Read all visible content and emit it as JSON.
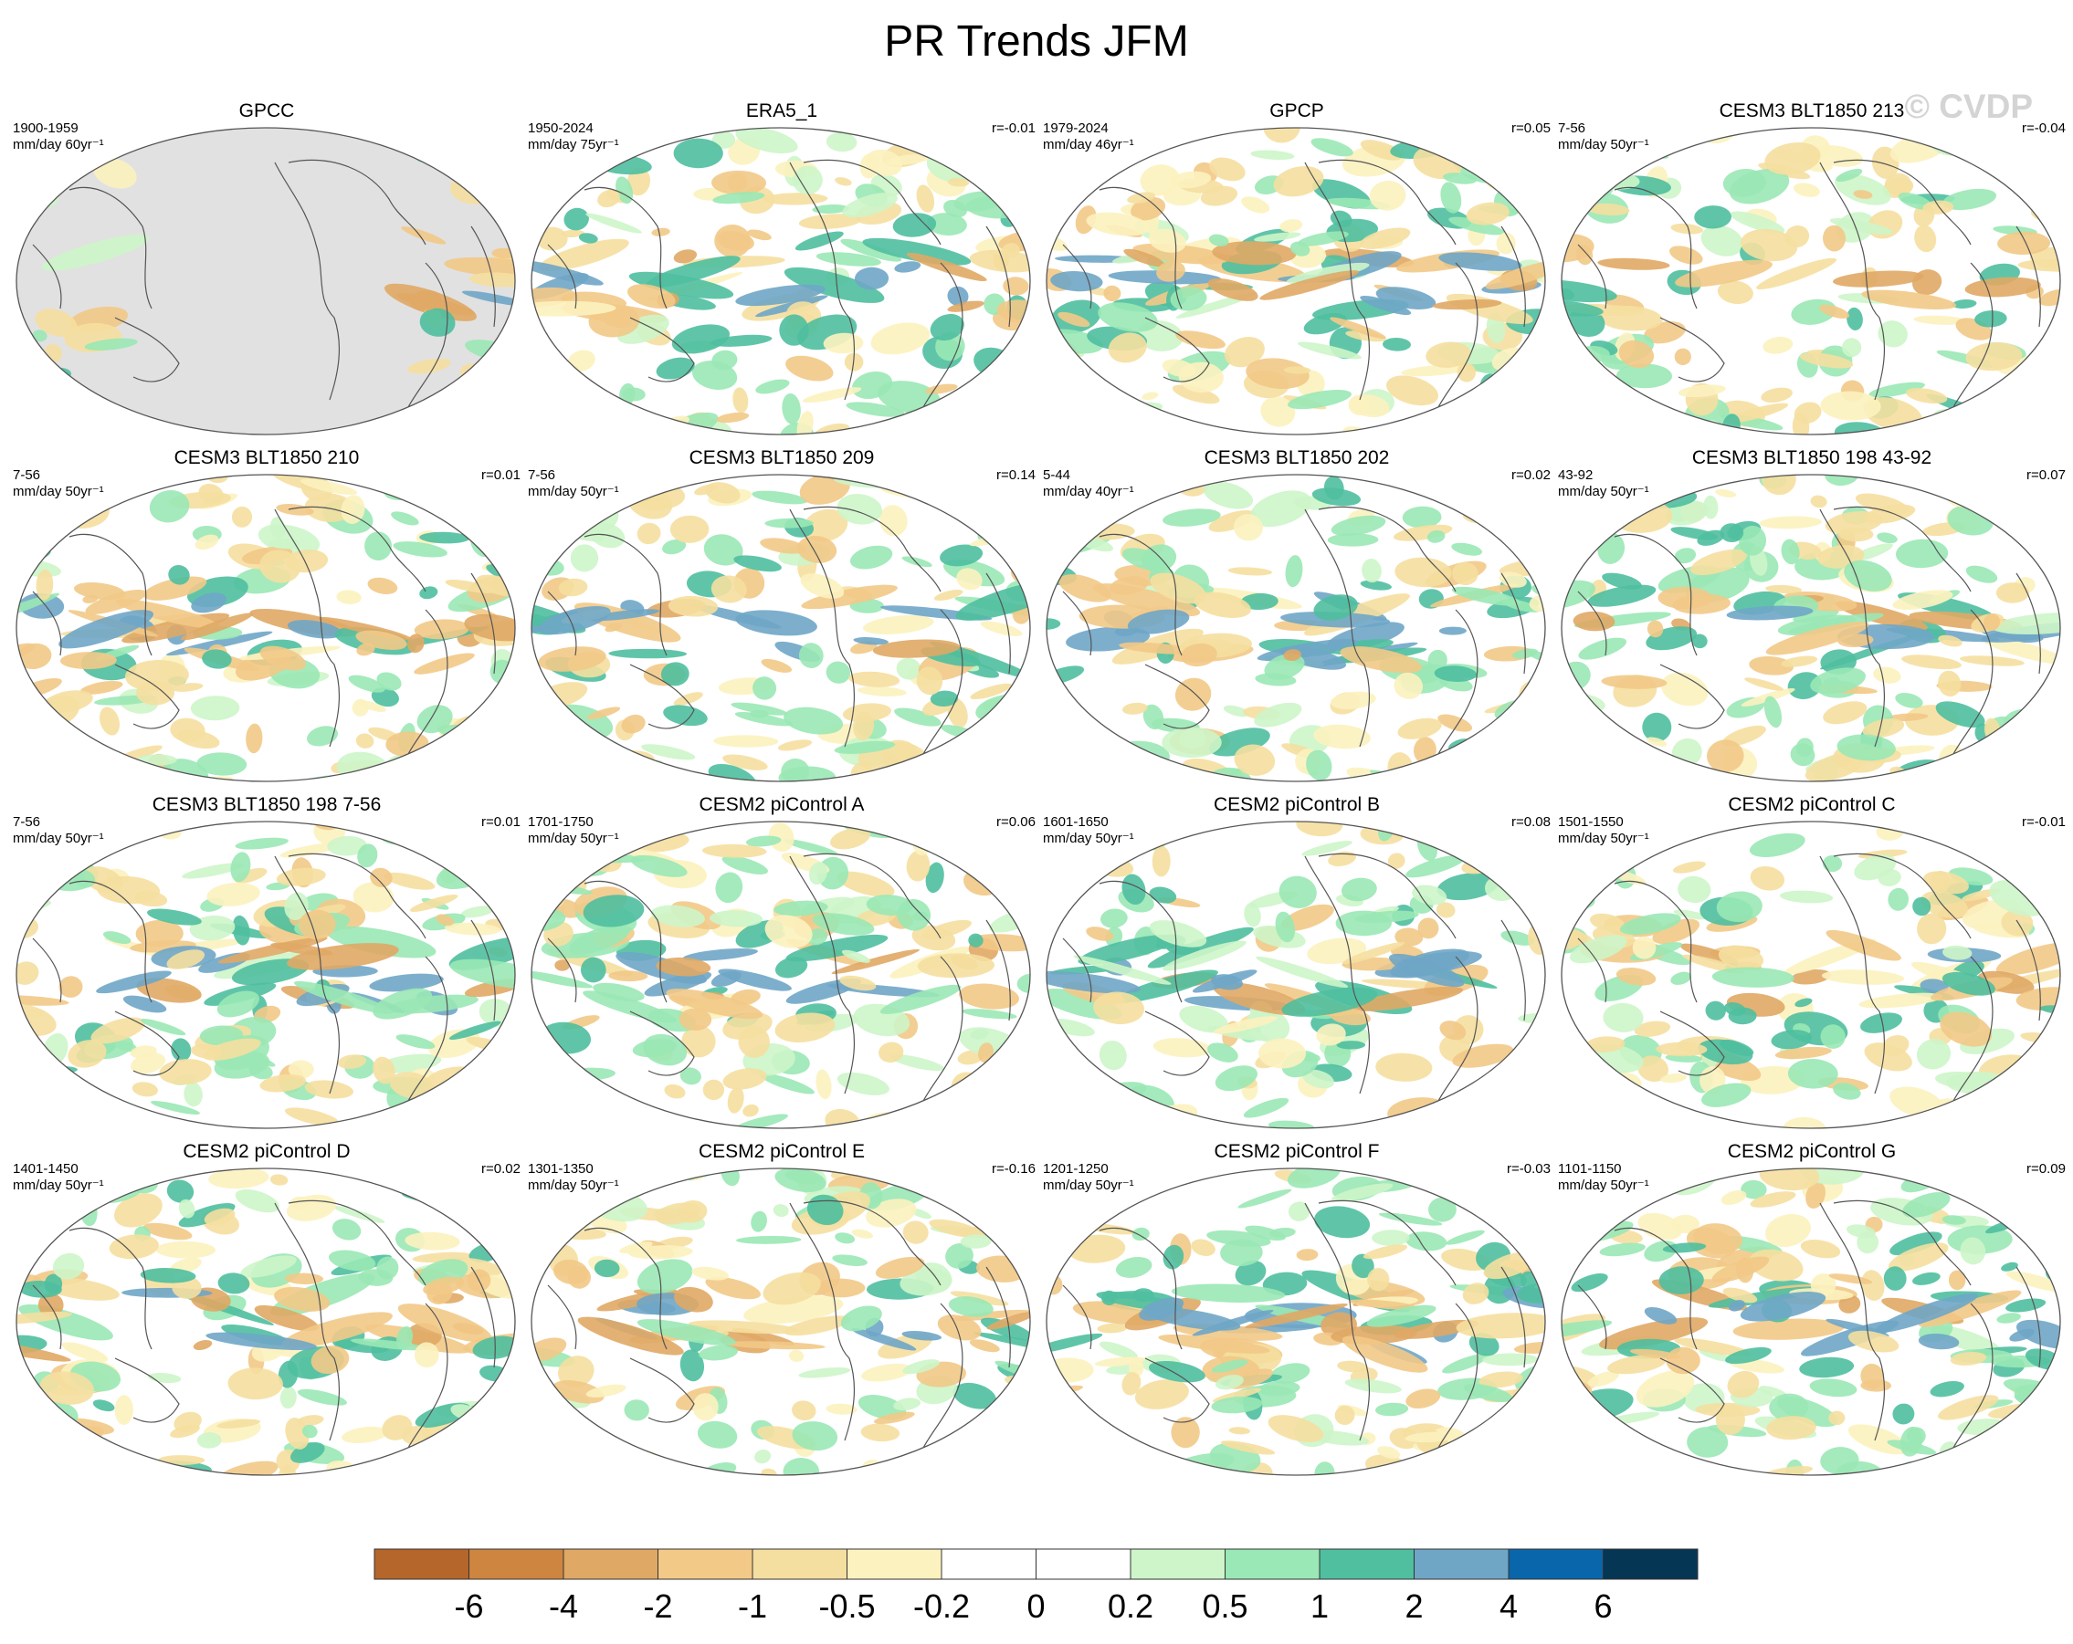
{
  "title": "PR Trends JFM",
  "watermark": "© CVDP",
  "panels": [
    {
      "title": "GPCC",
      "period": "1900-1959",
      "units": "mm/day 60yr⁻¹",
      "corr": "",
      "masked": true,
      "seed": 3
    },
    {
      "title": "ERA5_1",
      "period": "1950-2024",
      "units": "mm/day 75yr⁻¹",
      "corr": "r=-0.01",
      "masked": false,
      "seed": 11
    },
    {
      "title": "GPCP",
      "period": "1979-2024",
      "units": "mm/day 46yr⁻¹",
      "corr": "r=0.05",
      "masked": false,
      "seed": 19
    },
    {
      "title": "CESM3 BLT1850 213",
      "period": "7-56",
      "units": "mm/day 50yr⁻¹",
      "corr": "r=-0.04",
      "masked": false,
      "seed": 27
    },
    {
      "title": "CESM3 BLT1850 210",
      "period": "7-56",
      "units": "mm/day 50yr⁻¹",
      "corr": "r=0.01",
      "masked": false,
      "seed": 35
    },
    {
      "title": "CESM3 BLT1850 209",
      "period": "7-56",
      "units": "mm/day 50yr⁻¹",
      "corr": "r=0.14",
      "masked": false,
      "seed": 43
    },
    {
      "title": "CESM3 BLT1850 202",
      "period": "5-44",
      "units": "mm/day 40yr⁻¹",
      "corr": "r=0.02",
      "masked": false,
      "seed": 51
    },
    {
      "title": "CESM3 BLT1850 198 43-92",
      "period": "43-92",
      "units": "mm/day 50yr⁻¹",
      "corr": "r=0.07",
      "masked": false,
      "seed": 59
    },
    {
      "title": "CESM3 BLT1850 198 7-56",
      "period": "7-56",
      "units": "mm/day 50yr⁻¹",
      "corr": "r=0.01",
      "masked": false,
      "seed": 67
    },
    {
      "title": "CESM2 piControl A",
      "period": "1701-1750",
      "units": "mm/day 50yr⁻¹",
      "corr": "r=0.06",
      "masked": false,
      "seed": 75
    },
    {
      "title": "CESM2 piControl B",
      "period": "1601-1650",
      "units": "mm/day 50yr⁻¹",
      "corr": "r=0.08",
      "masked": false,
      "seed": 83
    },
    {
      "title": "CESM2 piControl C",
      "period": "1501-1550",
      "units": "mm/day 50yr⁻¹",
      "corr": "r=-0.01",
      "masked": false,
      "seed": 91
    },
    {
      "title": "CESM2 piControl D",
      "period": "1401-1450",
      "units": "mm/day 50yr⁻¹",
      "corr": "r=0.02",
      "masked": false,
      "seed": 99
    },
    {
      "title": "CESM2 piControl E",
      "period": "1301-1350",
      "units": "mm/day 50yr⁻¹",
      "corr": "r=-0.16",
      "masked": false,
      "seed": 107
    },
    {
      "title": "CESM2 piControl F",
      "period": "1201-1250",
      "units": "mm/day 50yr⁻¹",
      "corr": "r=-0.03",
      "masked": false,
      "seed": 115
    },
    {
      "title": "CESM2 piControl G",
      "period": "1101-1150",
      "units": "mm/day 50yr⁻¹",
      "corr": "r=0.09",
      "masked": false,
      "seed": 123
    }
  ],
  "colorbar": {
    "levels": [
      "-6",
      "-4",
      "-2",
      "-1",
      "-0.5",
      "-0.2",
      "0",
      "0.2",
      "0.5",
      "1",
      "2",
      "4",
      "6"
    ],
    "colors": [
      "#b5662a",
      "#cd8540",
      "#e0a865",
      "#f2c987",
      "#f5dfa0",
      "#fcf2bf",
      "#ffffff",
      "#ffffff",
      "#cdf5c9",
      "#9ae8b5",
      "#4fbf9f",
      "#6fa6c6",
      "#0a66aa",
      "#053654"
    ]
  },
  "map_style": {
    "land_mask_color": "#e1e1e1",
    "coast_color": "#555555",
    "ellipse_stroke": "#555555"
  }
}
